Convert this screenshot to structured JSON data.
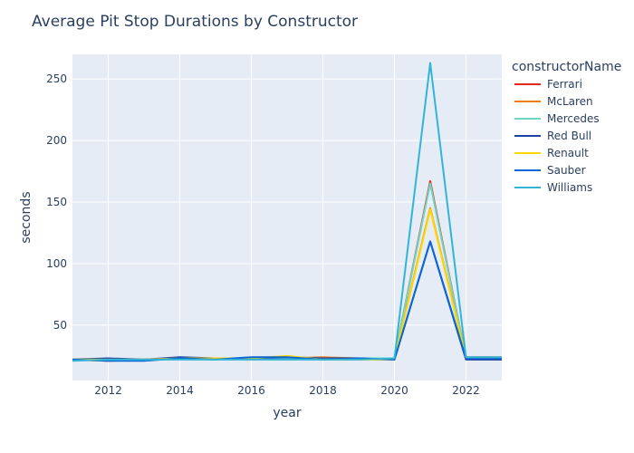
{
  "chart_data": {
    "type": "line",
    "title": "Average Pit Stop Durations by Constructor",
    "xlabel": "year",
    "ylabel": "seconds",
    "xlim": [
      2011,
      2023
    ],
    "ylim": [
      5,
      270
    ],
    "x_ticks": [
      2012,
      2014,
      2016,
      2018,
      2020,
      2022
    ],
    "y_ticks": [
      50,
      100,
      150,
      200,
      250
    ],
    "grid": true,
    "legend_title": "constructorName",
    "legend_position": "right",
    "plot_background": "#e5ecf6",
    "x": [
      2011,
      2012,
      2013,
      2014,
      2015,
      2016,
      2017,
      2018,
      2019,
      2020,
      2021,
      2022,
      2023
    ],
    "series": [
      {
        "name": "Ferrari",
        "color": "#e0281b",
        "values": [
          22,
          21,
          22,
          23,
          23,
          23,
          23,
          23,
          23,
          23,
          167,
          23,
          23
        ]
      },
      {
        "name": "McLaren",
        "color": "#f07d0f",
        "values": [
          22,
          21,
          22,
          23,
          23,
          23,
          23,
          24,
          23,
          23,
          145,
          24,
          24
        ]
      },
      {
        "name": "Mercedes",
        "color": "#6fd6c2",
        "values": [
          22,
          22,
          22,
          23,
          23,
          23,
          23,
          23,
          23,
          23,
          165,
          23,
          23
        ]
      },
      {
        "name": "Red Bull",
        "color": "#1e41a6",
        "values": [
          22,
          23,
          22,
          24,
          23,
          23,
          24,
          23,
          23,
          22,
          118,
          22,
          22
        ]
      },
      {
        "name": "Renault",
        "color": "#ffd600",
        "values": [
          22,
          22,
          22,
          23,
          23,
          23,
          25,
          22,
          22,
          22,
          144,
          23,
          23
        ]
      },
      {
        "name": "Sauber",
        "color": "#0a66d6",
        "values": [
          22,
          21,
          21,
          23,
          22,
          24,
          24,
          22,
          23,
          22,
          118,
          23,
          23
        ]
      },
      {
        "name": "Williams",
        "color": "#33b4d6",
        "values": [
          21,
          22,
          22,
          22,
          22,
          22,
          22,
          22,
          22,
          23,
          263,
          24,
          24
        ]
      }
    ]
  }
}
